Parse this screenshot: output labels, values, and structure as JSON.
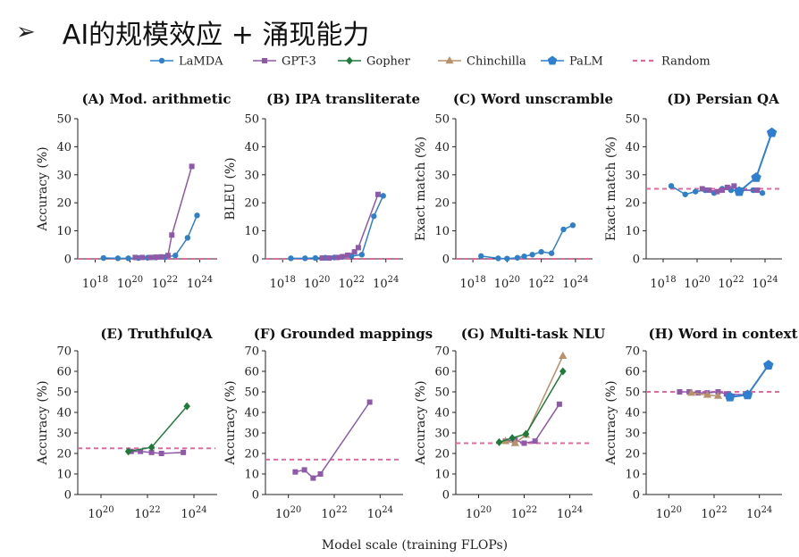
{
  "slide": {
    "arrow": "➢",
    "title": "AI的规模效应 + 涌现能力"
  },
  "colors": {
    "LaMDA": "#2f80c8",
    "GPT-3": "#8e5aa8",
    "Gopher": "#1f7a3a",
    "Chinchilla": "#b8916c",
    "PaLM": "#2f7fd0",
    "Random": "#e06aa0"
  },
  "chart_data": [
    {
      "type": "line",
      "id": "A",
      "title": "(A) Mod. arithmetic",
      "ylabel": "Accuracy (%)",
      "xscale": "log",
      "xlim": [
        1e+17,
        1e+25
      ],
      "ylim": [
        0,
        50
      ],
      "yticks": [
        0,
        10,
        20,
        30,
        40,
        50
      ],
      "xticks": [
        {
          "value": 1e+18,
          "base": "10",
          "exp": "18"
        },
        {
          "value": 1e+20,
          "base": "10",
          "exp": "20"
        },
        {
          "value": 1e+22,
          "base": "10",
          "exp": "22"
        },
        {
          "value": 1e+24,
          "base": "10",
          "exp": "24"
        }
      ],
      "random": 0,
      "series": [
        {
          "name": "LaMDA",
          "x": [
            3e+18,
            2e+19,
            8e+19,
            3e+20,
            1e+21,
            3e+21,
            1e+22,
            4e+22,
            2e+23,
            7e+23
          ],
          "y": [
            0.3,
            0.2,
            0.2,
            0.3,
            0.4,
            0.5,
            0.6,
            1.2,
            7.5,
            15.5
          ]
        },
        {
          "name": "GPT-3",
          "x": [
            2e+20,
            5e+20,
            1.5e+21,
            3e+21,
            6e+21,
            1.5e+22,
            2.5e+22,
            3.5e+23
          ],
          "y": [
            0.5,
            0.5,
            0.5,
            0.6,
            0.7,
            1.2,
            8.5,
            33
          ]
        }
      ]
    },
    {
      "type": "line",
      "id": "B",
      "title": "(B) IPA transliterate",
      "ylabel": "BLEU (%)",
      "xscale": "log",
      "xlim": [
        1e+17,
        1e+25
      ],
      "ylim": [
        0,
        50
      ],
      "yticks": [
        0,
        10,
        20,
        30,
        40,
        50
      ],
      "xticks": [
        {
          "value": 1e+18,
          "base": "10",
          "exp": "18"
        },
        {
          "value": 1e+20,
          "base": "10",
          "exp": "20"
        },
        {
          "value": 1e+22,
          "base": "10",
          "exp": "22"
        },
        {
          "value": 1e+24,
          "base": "10",
          "exp": "24"
        }
      ],
      "random": 0,
      "series": [
        {
          "name": "LaMDA",
          "x": [
            3e+18,
            2e+19,
            8e+19,
            3e+20,
            1e+21,
            3e+21,
            1e+22,
            4e+22,
            2e+23,
            7e+23
          ],
          "y": [
            0.2,
            0.2,
            0.3,
            0.4,
            0.5,
            0.7,
            1.0,
            1.5,
            15.2,
            22.5
          ]
        },
        {
          "name": "GPT-3",
          "x": [
            2e+20,
            5e+20,
            1.5e+21,
            3e+21,
            6e+21,
            1.5e+22,
            2.5e+22,
            3.5e+23
          ],
          "y": [
            0.3,
            0.3,
            0.5,
            0.8,
            1.3,
            2.5,
            4.0,
            23
          ]
        }
      ]
    },
    {
      "type": "line",
      "id": "C",
      "title": "(C) Word unscramble",
      "ylabel": "Exact match (%)",
      "xscale": "log",
      "xlim": [
        1e+17,
        1e+25
      ],
      "ylim": [
        0,
        50
      ],
      "yticks": [
        0,
        10,
        20,
        30,
        40,
        50
      ],
      "xticks": [
        {
          "value": 1e+18,
          "base": "10",
          "exp": "18"
        },
        {
          "value": 1e+20,
          "base": "10",
          "exp": "20"
        },
        {
          "value": 1e+22,
          "base": "10",
          "exp": "22"
        },
        {
          "value": 1e+24,
          "base": "10",
          "exp": "24"
        }
      ],
      "random": 0,
      "series": [
        {
          "name": "LaMDA",
          "x": [
            3e+18,
            3e+19,
            1e+20,
            4e+20,
            1e+21,
            3e+21,
            1e+22,
            4e+22,
            2e+23,
            7e+23
          ],
          "y": [
            1.0,
            0.2,
            0.1,
            0.4,
            0.9,
            1.5,
            2.5,
            2.0,
            10.5,
            12.0
          ]
        }
      ]
    },
    {
      "type": "line",
      "id": "D",
      "title": "(D) Persian QA",
      "ylabel": "Exact match (%)",
      "xscale": "log",
      "xlim": [
        1e+17,
        1e+25
      ],
      "ylim": [
        0,
        50
      ],
      "yticks": [
        0,
        10,
        20,
        30,
        40,
        50
      ],
      "xticks": [
        {
          "value": 1e+18,
          "base": "10",
          "exp": "18"
        },
        {
          "value": 1e+20,
          "base": "10",
          "exp": "20"
        },
        {
          "value": 1e+22,
          "base": "10",
          "exp": "22"
        },
        {
          "value": 1e+24,
          "base": "10",
          "exp": "24"
        }
      ],
      "random": 25,
      "series": [
        {
          "name": "LaMDA",
          "x": [
            3e+18,
            2e+19,
            8e+19,
            3e+20,
            1e+21,
            3e+21,
            1e+22,
            4e+22,
            2e+23,
            7e+23
          ],
          "y": [
            26,
            23,
            24,
            24.5,
            23.5,
            25,
            24.5,
            24.5,
            24.5,
            23.5
          ]
        },
        {
          "name": "GPT-3",
          "x": [
            2e+20,
            5e+20,
            1.5e+21,
            3e+21,
            6e+21,
            1.5e+22,
            2.5e+22,
            3.5e+23
          ],
          "y": [
            25,
            24.5,
            24,
            24.5,
            25.5,
            26,
            24.5,
            24.5
          ]
        },
        {
          "name": "PaLM",
          "x": [
            3e+22,
            3e+23,
            2.5e+24
          ],
          "y": [
            24,
            29,
            45
          ]
        }
      ]
    },
    {
      "type": "line",
      "id": "E",
      "title": "(E) TruthfulQA",
      "ylabel": "Accuracy (%)",
      "xscale": "log",
      "xlim": [
        1e+19,
        1e+25
      ],
      "ylim": [
        0,
        70
      ],
      "yticks": [
        0,
        10,
        20,
        30,
        40,
        50,
        60,
        70
      ],
      "xticks": [
        {
          "value": 1e+20,
          "base": "10",
          "exp": "20"
        },
        {
          "value": 1e+22,
          "base": "10",
          "exp": "22"
        },
        {
          "value": 1e+24,
          "base": "10",
          "exp": "24"
        }
      ],
      "random": 22.5,
      "series": [
        {
          "name": "GPT-3",
          "x": [
            2e+21,
            5e+21,
            1.5e+22,
            4e+22,
            3.5e+23
          ],
          "y": [
            21,
            21,
            20.5,
            20,
            20.5
          ]
        },
        {
          "name": "Gopher",
          "x": [
            1.5e+21,
            1.5e+22,
            5e+23
          ],
          "y": [
            21,
            23,
            43
          ]
        }
      ]
    },
    {
      "type": "line",
      "id": "F",
      "title": "(F) Grounded mappings",
      "ylabel": "Accuracy (%)",
      "xscale": "log",
      "xlim": [
        1e+19,
        1e+25
      ],
      "ylim": [
        0,
        70
      ],
      "yticks": [
        0,
        10,
        20,
        30,
        40,
        50,
        60,
        70
      ],
      "xticks": [
        {
          "value": 1e+20,
          "base": "10",
          "exp": "20"
        },
        {
          "value": 1e+22,
          "base": "10",
          "exp": "22"
        },
        {
          "value": 1e+24,
          "base": "10",
          "exp": "24"
        }
      ],
      "random": 17,
      "series": [
        {
          "name": "GPT-3",
          "x": [
            2e+20,
            5e+20,
            1.2e+21,
            2.5e+21,
            3.5e+23
          ],
          "y": [
            11,
            12,
            8,
            10,
            45
          ]
        }
      ]
    },
    {
      "type": "line",
      "id": "G",
      "title": "(G) Multi-task NLU",
      "ylabel": "Accuracy (%)",
      "xscale": "log",
      "xlim": [
        1e+19,
        1e+25
      ],
      "ylim": [
        0,
        70
      ],
      "yticks": [
        0,
        10,
        20,
        30,
        40,
        50,
        60,
        70
      ],
      "xticks": [
        {
          "value": 1e+20,
          "base": "10",
          "exp": "20"
        },
        {
          "value": 1e+22,
          "base": "10",
          "exp": "22"
        },
        {
          "value": 1e+24,
          "base": "10",
          "exp": "24"
        }
      ],
      "random": 25,
      "series": [
        {
          "name": "GPT-3",
          "x": [
            1.5e+21,
            4e+21,
            1e+22,
            3e+22,
            3.5e+23
          ],
          "y": [
            26,
            26.5,
            25,
            26,
            44
          ]
        },
        {
          "name": "Chinchilla",
          "x": [
            1.5e+21,
            4e+21,
            1.2e+22,
            5e+23
          ],
          "y": [
            26,
            25,
            29,
            67.5
          ]
        },
        {
          "name": "Gopher",
          "x": [
            8e+20,
            3e+21,
            1.2e+22,
            5e+23
          ],
          "y": [
            25.5,
            27.5,
            29.5,
            60
          ]
        }
      ]
    },
    {
      "type": "line",
      "id": "H",
      "title": "(H) Word in context",
      "ylabel": "Accuracy (%)",
      "xscale": "log",
      "xlim": [
        1e+19,
        1e+25
      ],
      "ylim": [
        0,
        70
      ],
      "yticks": [
        0,
        10,
        20,
        30,
        40,
        50,
        60,
        70
      ],
      "xticks": [
        {
          "value": 1e+20,
          "base": "10",
          "exp": "20"
        },
        {
          "value": 1e+22,
          "base": "10",
          "exp": "22"
        },
        {
          "value": 1e+24,
          "base": "10",
          "exp": "24"
        }
      ],
      "random": 50,
      "series": [
        {
          "name": "GPT-3",
          "x": [
            3e+20,
            8e+20,
            2e+21,
            5e+21,
            1.5e+22,
            3.5e+22,
            3e+23
          ],
          "y": [
            50,
            50,
            49.5,
            49.5,
            50,
            49,
            48.5
          ]
        },
        {
          "name": "Chinchilla",
          "x": [
            1e+21,
            5e+21,
            1.5e+22
          ],
          "y": [
            49.5,
            48.5,
            48
          ]
        },
        {
          "name": "PaLM",
          "x": [
            5e+22,
            3e+23,
            2.5e+24
          ],
          "y": [
            47.5,
            48.5,
            63
          ]
        }
      ]
    }
  ],
  "legend": {
    "entries": [
      {
        "name": "LaMDA",
        "label": "LaMDA",
        "marker": "circle",
        "dash": false
      },
      {
        "name": "GPT-3",
        "label": "GPT-3",
        "marker": "square",
        "dash": false
      },
      {
        "name": "Gopher",
        "label": "Gopher",
        "marker": "diamond",
        "dash": false
      },
      {
        "name": "Chinchilla",
        "label": "Chinchilla",
        "marker": "triangle",
        "dash": false
      },
      {
        "name": "PaLM",
        "label": "PaLM",
        "marker": "pentagon",
        "dash": false
      },
      {
        "name": "Random",
        "label": "Random",
        "marker": "none",
        "dash": true
      }
    ]
  },
  "common_xlabel": "Model scale (training FLOPs)"
}
